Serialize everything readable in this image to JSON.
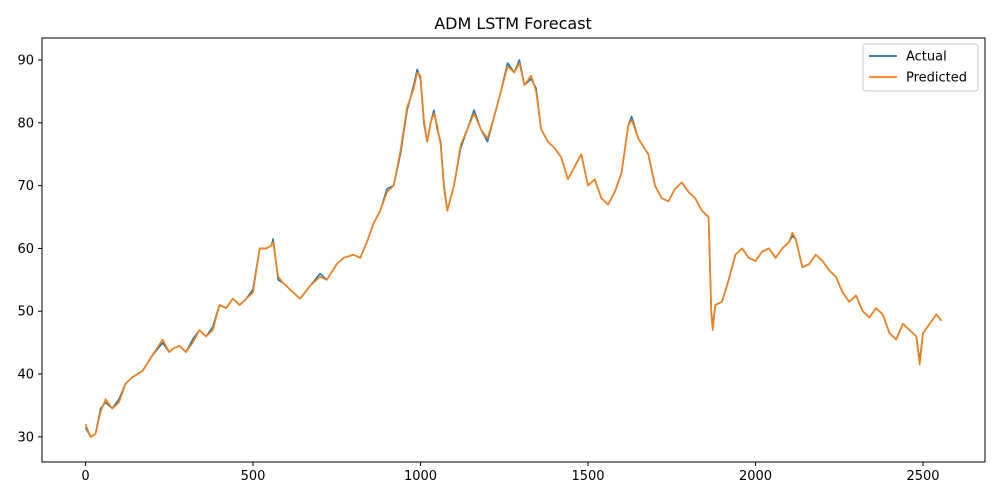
{
  "chart_data": {
    "type": "line",
    "title": "ADM LSTM Forecast",
    "xlabel": "",
    "ylabel": "",
    "xlim": [
      -130,
      2685
    ],
    "ylim": [
      26.0,
      93.5
    ],
    "xticks": [
      0,
      500,
      1000,
      1500,
      2000,
      2500
    ],
    "yticks": [
      30,
      40,
      50,
      60,
      70,
      80,
      90
    ],
    "grid": false,
    "legend": "top-right",
    "series": [
      {
        "name": "Actual",
        "color": "#1f77b4",
        "x": [
          0,
          15,
          30,
          45,
          60,
          80,
          100,
          120,
          140,
          170,
          200,
          230,
          250,
          260,
          280,
          300,
          320,
          340,
          360,
          380,
          400,
          420,
          440,
          460,
          480,
          500,
          520,
          540,
          555,
          560,
          575,
          590,
          610,
          640,
          670,
          700,
          720,
          750,
          770,
          800,
          820,
          840,
          860,
          880,
          900,
          920,
          940,
          960,
          980,
          990,
          1000,
          1010,
          1020,
          1030,
          1040,
          1050,
          1060,
          1070,
          1080,
          1100,
          1120,
          1140,
          1160,
          1180,
          1200,
          1220,
          1240,
          1260,
          1280,
          1295,
          1310,
          1330,
          1345,
          1360,
          1380,
          1400,
          1420,
          1440,
          1460,
          1480,
          1500,
          1520,
          1540,
          1560,
          1580,
          1600,
          1620,
          1630,
          1650,
          1680,
          1700,
          1720,
          1740,
          1760,
          1780,
          1800,
          1820,
          1840,
          1860,
          1868,
          1872,
          1880,
          1900,
          1920,
          1940,
          1960,
          1980,
          2000,
          2020,
          2040,
          2060,
          2080,
          2100,
          2110,
          2120,
          2140,
          2160,
          2180,
          2200,
          2220,
          2240,
          2260,
          2280,
          2300,
          2320,
          2340,
          2360,
          2380,
          2400,
          2420,
          2440,
          2460,
          2480,
          2490,
          2500,
          2520,
          2540,
          2555
        ],
        "y": [
          31.5,
          30.0,
          30.5,
          34.5,
          35.5,
          34.5,
          36.0,
          38.5,
          39.5,
          40.5,
          43.0,
          45.0,
          43.5,
          44.0,
          44.5,
          43.5,
          45.5,
          47.0,
          46.0,
          47.5,
          51.0,
          50.5,
          52.0,
          51.0,
          52.0,
          53.5,
          60.0,
          60.0,
          60.5,
          61.5,
          55.0,
          54.5,
          53.5,
          52.0,
          54.0,
          56.0,
          55.0,
          57.5,
          58.5,
          59.0,
          58.5,
          61.0,
          64.0,
          66.0,
          69.5,
          70.0,
          75.0,
          82.0,
          86.0,
          88.5,
          87.0,
          80.0,
          77.0,
          80.0,
          82.0,
          79.0,
          77.0,
          70.0,
          66.0,
          70.0,
          76.0,
          79.0,
          82.0,
          79.0,
          77.0,
          81.0,
          85.0,
          89.5,
          88.0,
          90.0,
          86.0,
          87.0,
          85.5,
          79.0,
          77.0,
          76.0,
          74.5,
          71.0,
          73.0,
          75.0,
          70.0,
          71.0,
          68.0,
          67.0,
          69.0,
          72.0,
          79.5,
          81.0,
          77.5,
          75.0,
          70.0,
          68.0,
          67.5,
          69.5,
          70.5,
          69.0,
          68.0,
          66.0,
          65.0,
          50.0,
          47.5,
          51.0,
          51.5,
          55.0,
          59.0,
          60.0,
          58.5,
          58.0,
          59.5,
          60.0,
          58.5,
          60.0,
          61.0,
          62.0,
          61.5,
          57.0,
          57.5,
          59.0,
          58.0,
          56.5,
          55.5,
          53.0,
          51.5,
          52.5,
          50.0,
          49.0,
          50.5,
          49.5,
          46.5,
          45.5,
          48.0,
          47.0,
          46.0,
          42.0,
          46.5,
          48.0,
          49.5,
          48.5
        ]
      },
      {
        "name": "Predicted",
        "color": "#ff7f0e",
        "x": [
          0,
          15,
          30,
          45,
          60,
          80,
          100,
          120,
          140,
          170,
          200,
          230,
          250,
          260,
          280,
          300,
          320,
          340,
          360,
          380,
          400,
          420,
          440,
          460,
          480,
          500,
          520,
          540,
          555,
          560,
          575,
          590,
          610,
          640,
          670,
          700,
          720,
          750,
          770,
          800,
          820,
          840,
          860,
          880,
          900,
          920,
          940,
          960,
          980,
          990,
          1000,
          1010,
          1020,
          1030,
          1040,
          1050,
          1060,
          1070,
          1080,
          1100,
          1120,
          1140,
          1160,
          1180,
          1200,
          1220,
          1240,
          1260,
          1280,
          1295,
          1310,
          1330,
          1345,
          1360,
          1380,
          1400,
          1420,
          1440,
          1460,
          1480,
          1500,
          1520,
          1540,
          1560,
          1580,
          1600,
          1620,
          1630,
          1650,
          1680,
          1700,
          1720,
          1740,
          1760,
          1780,
          1800,
          1820,
          1840,
          1860,
          1868,
          1872,
          1880,
          1900,
          1920,
          1940,
          1960,
          1980,
          2000,
          2020,
          2040,
          2060,
          2080,
          2100,
          2110,
          2120,
          2140,
          2160,
          2180,
          2200,
          2220,
          2240,
          2260,
          2280,
          2300,
          2320,
          2340,
          2360,
          2380,
          2400,
          2420,
          2440,
          2460,
          2480,
          2490,
          2500,
          2520,
          2540,
          2555
        ],
        "y": [
          32.0,
          30.0,
          30.5,
          34.0,
          36.0,
          34.5,
          35.5,
          38.5,
          39.5,
          40.5,
          43.0,
          45.5,
          43.5,
          44.0,
          44.5,
          43.5,
          45.0,
          47.0,
          46.0,
          47.0,
          51.0,
          50.5,
          52.0,
          51.0,
          52.0,
          53.0,
          60.0,
          60.0,
          60.5,
          61.0,
          55.5,
          54.5,
          53.5,
          52.0,
          54.0,
          55.5,
          55.0,
          57.5,
          58.5,
          59.0,
          58.5,
          61.0,
          64.0,
          66.0,
          69.0,
          70.0,
          75.5,
          82.5,
          85.5,
          88.0,
          87.5,
          80.5,
          77.0,
          80.0,
          81.5,
          79.5,
          76.5,
          69.5,
          66.0,
          70.0,
          76.5,
          79.0,
          81.5,
          79.0,
          77.5,
          81.0,
          85.0,
          89.0,
          88.0,
          89.5,
          86.0,
          87.5,
          85.0,
          79.0,
          77.0,
          76.0,
          74.5,
          71.0,
          73.0,
          75.0,
          70.0,
          71.0,
          68.0,
          67.0,
          69.0,
          72.0,
          79.5,
          80.5,
          77.5,
          75.0,
          70.0,
          68.0,
          67.5,
          69.5,
          70.5,
          69.0,
          68.0,
          66.0,
          65.0,
          49.5,
          47.0,
          51.0,
          51.5,
          55.0,
          59.0,
          60.0,
          58.5,
          58.0,
          59.5,
          60.0,
          58.5,
          60.0,
          61.0,
          62.5,
          61.5,
          57.0,
          57.5,
          59.0,
          58.0,
          56.5,
          55.5,
          53.0,
          51.5,
          52.5,
          50.0,
          49.0,
          50.5,
          49.5,
          46.5,
          45.5,
          48.0,
          47.0,
          46.0,
          41.5,
          46.5,
          48.0,
          49.5,
          48.5
        ]
      }
    ]
  }
}
